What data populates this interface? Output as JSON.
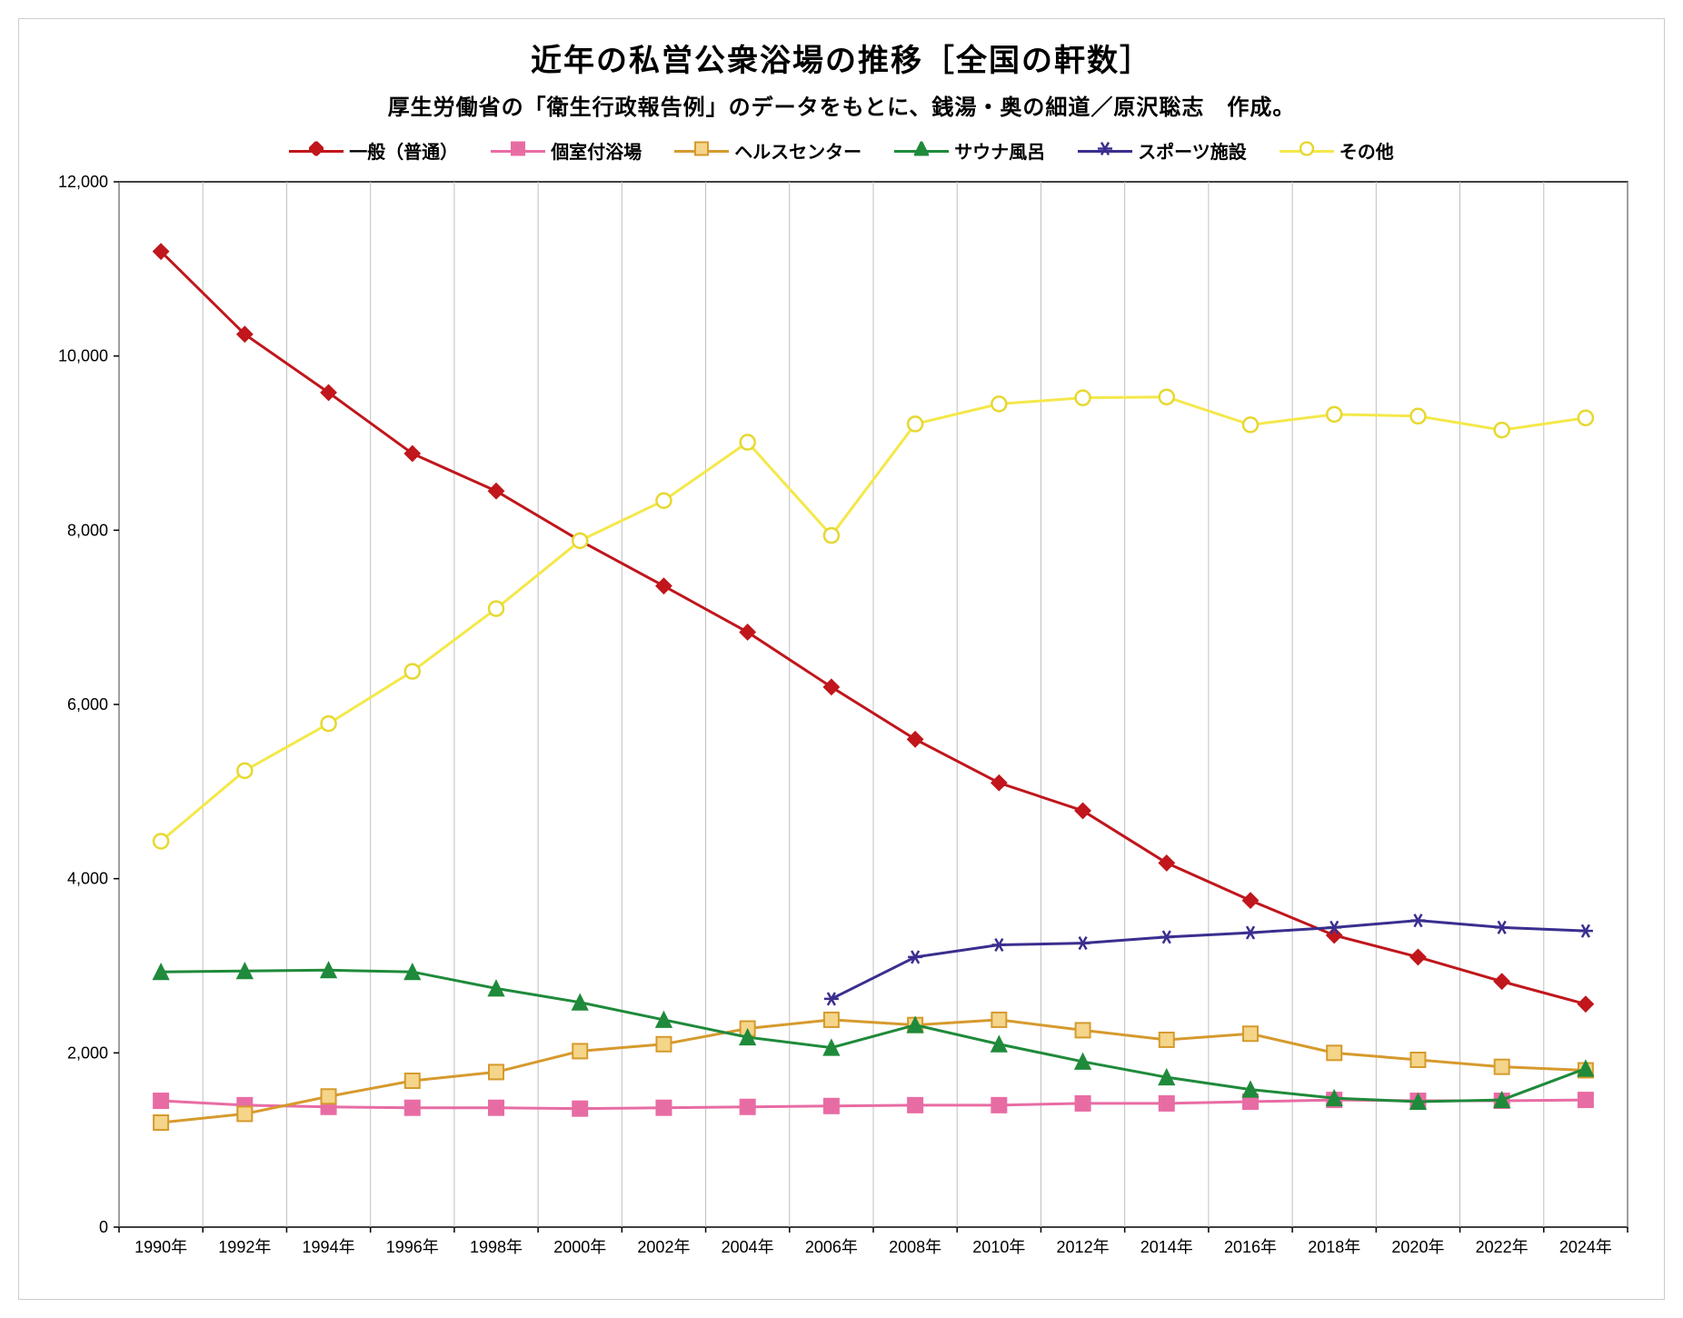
{
  "chart": {
    "type": "line",
    "title": "近年の私営公衆浴場の推移［全国の軒数］",
    "subtitle": "厚生労働省の「衛生行政報告例」のデータをもとに、銭湯・奥の細道／原沢聡志　作成。",
    "title_fontsize": 34,
    "subtitle_fontsize": 24,
    "background_color": "#ffffff",
    "frame_border_color": "#cccccc",
    "grid_color": "#bfbfbf",
    "axis_color": "#000000",
    "xlim_categories": [
      "1990年",
      "1992年",
      "1994年",
      "1996年",
      "1998年",
      "2000年",
      "2002年",
      "2004年",
      "2006年",
      "2008年",
      "2010年",
      "2012年",
      "2014年",
      "2016年",
      "2018年",
      "2020年",
      "2022年",
      "2024年"
    ],
    "ylim": [
      0,
      12000
    ],
    "ytick_step": 2000,
    "ytick_labels": [
      "0",
      "2,000",
      "4,000",
      "6,000",
      "8,000",
      "10,000",
      "12,000"
    ],
    "line_width": 3,
    "marker_size": 12,
    "legend_fontsize": 20,
    "axis_fontsize": 18,
    "series": [
      {
        "id": "general",
        "label": "一般（普通）",
        "color": "#c0161c",
        "marker": "diamond",
        "marker_fill": "#c0161c",
        "marker_stroke": "#c0161c",
        "values": [
          11200,
          10250,
          9580,
          8880,
          8450,
          7880,
          7360,
          6830,
          6200,
          5600,
          5100,
          4780,
          4180,
          3750,
          3350,
          3100,
          2820,
          2560
        ]
      },
      {
        "id": "private_room",
        "label": "個室付浴場",
        "color": "#e86ca4",
        "marker": "square",
        "marker_fill": "#e86ca4",
        "marker_stroke": "#e86ca4",
        "values": [
          1450,
          1400,
          1380,
          1370,
          1370,
          1360,
          1370,
          1380,
          1390,
          1400,
          1400,
          1420,
          1420,
          1440,
          1460,
          1450,
          1450,
          1460
        ]
      },
      {
        "id": "health_center",
        "label": "ヘルスセンター",
        "color": "#d69a2d",
        "marker": "square",
        "marker_fill": "#f4d58a",
        "marker_stroke": "#d69a2d",
        "values": [
          1200,
          1300,
          1500,
          1680,
          1780,
          2020,
          2100,
          2280,
          2380,
          2320,
          2380,
          2260,
          2150,
          2220,
          2000,
          1920,
          1840,
          1800
        ]
      },
      {
        "id": "sauna",
        "label": "サウナ風呂",
        "color": "#1f8a3b",
        "marker": "triangle",
        "marker_fill": "#1f8a3b",
        "marker_stroke": "#1f8a3b",
        "values": [
          2930,
          2940,
          2950,
          2930,
          2740,
          2580,
          2380,
          2180,
          2060,
          2320,
          2100,
          1900,
          1720,
          1580,
          1480,
          1440,
          1460,
          1820
        ]
      },
      {
        "id": "sports",
        "label": "スポーツ施設",
        "color": "#3a2e8f",
        "marker": "star",
        "marker_fill": "#3a2e8f",
        "marker_stroke": "#3a2e8f",
        "values": [
          null,
          null,
          null,
          null,
          null,
          null,
          null,
          null,
          2620,
          3100,
          3240,
          3260,
          3330,
          3380,
          3440,
          3520,
          3440,
          3400
        ]
      },
      {
        "id": "other",
        "label": "その他",
        "color": "#f4e84a",
        "marker": "circle",
        "marker_fill": "#ffffff",
        "marker_stroke": "#e6d830",
        "values": [
          4430,
          5240,
          5780,
          6380,
          7100,
          7880,
          8340,
          9010,
          7940,
          9220,
          9450,
          9520,
          9530,
          9210,
          9330,
          9310,
          9150,
          9290
        ]
      }
    ]
  }
}
